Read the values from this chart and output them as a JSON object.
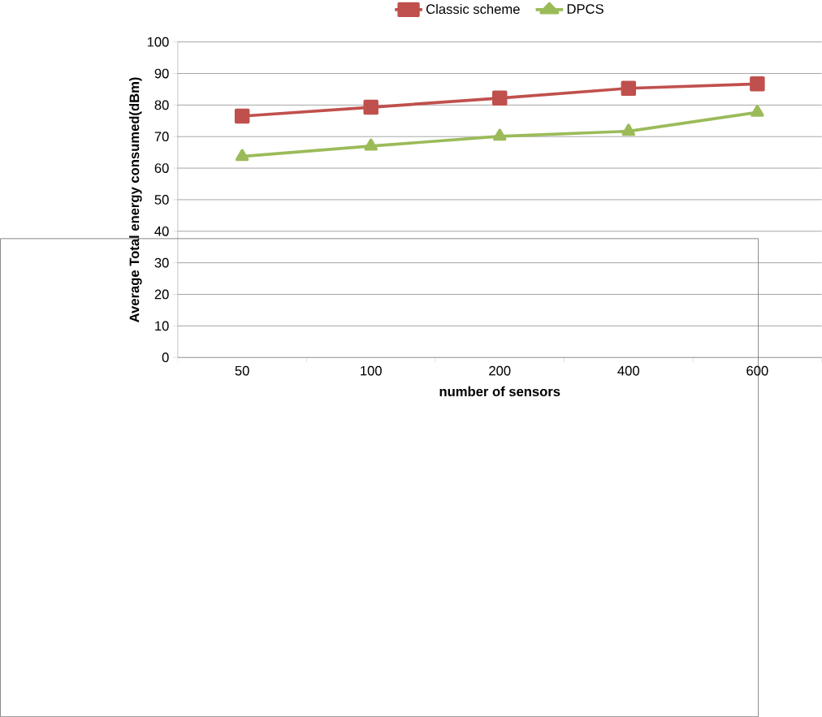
{
  "chart_data": {
    "type": "line",
    "xlabel": "number of sensors",
    "ylabel": "Average Total energy consumed(dBm)",
    "categories": [
      "50",
      "100",
      "200",
      "400",
      "600"
    ],
    "series": [
      {
        "name": "Classic scheme",
        "color": "#c0504d",
        "marker": "square",
        "values": [
          76.5,
          79.3,
          82.2,
          85.3,
          86.7
        ]
      },
      {
        "name": "DPCS",
        "color": "#9bbb59",
        "marker": "triangle",
        "values": [
          63.7,
          67.0,
          70.1,
          71.7,
          77.7
        ]
      }
    ],
    "ylim": [
      0,
      100
    ],
    "yticks": [
      0,
      10,
      20,
      30,
      40,
      50,
      60,
      70,
      80,
      90,
      100
    ],
    "grid": "y",
    "legend": "top",
    "line_style": "solid"
  }
}
